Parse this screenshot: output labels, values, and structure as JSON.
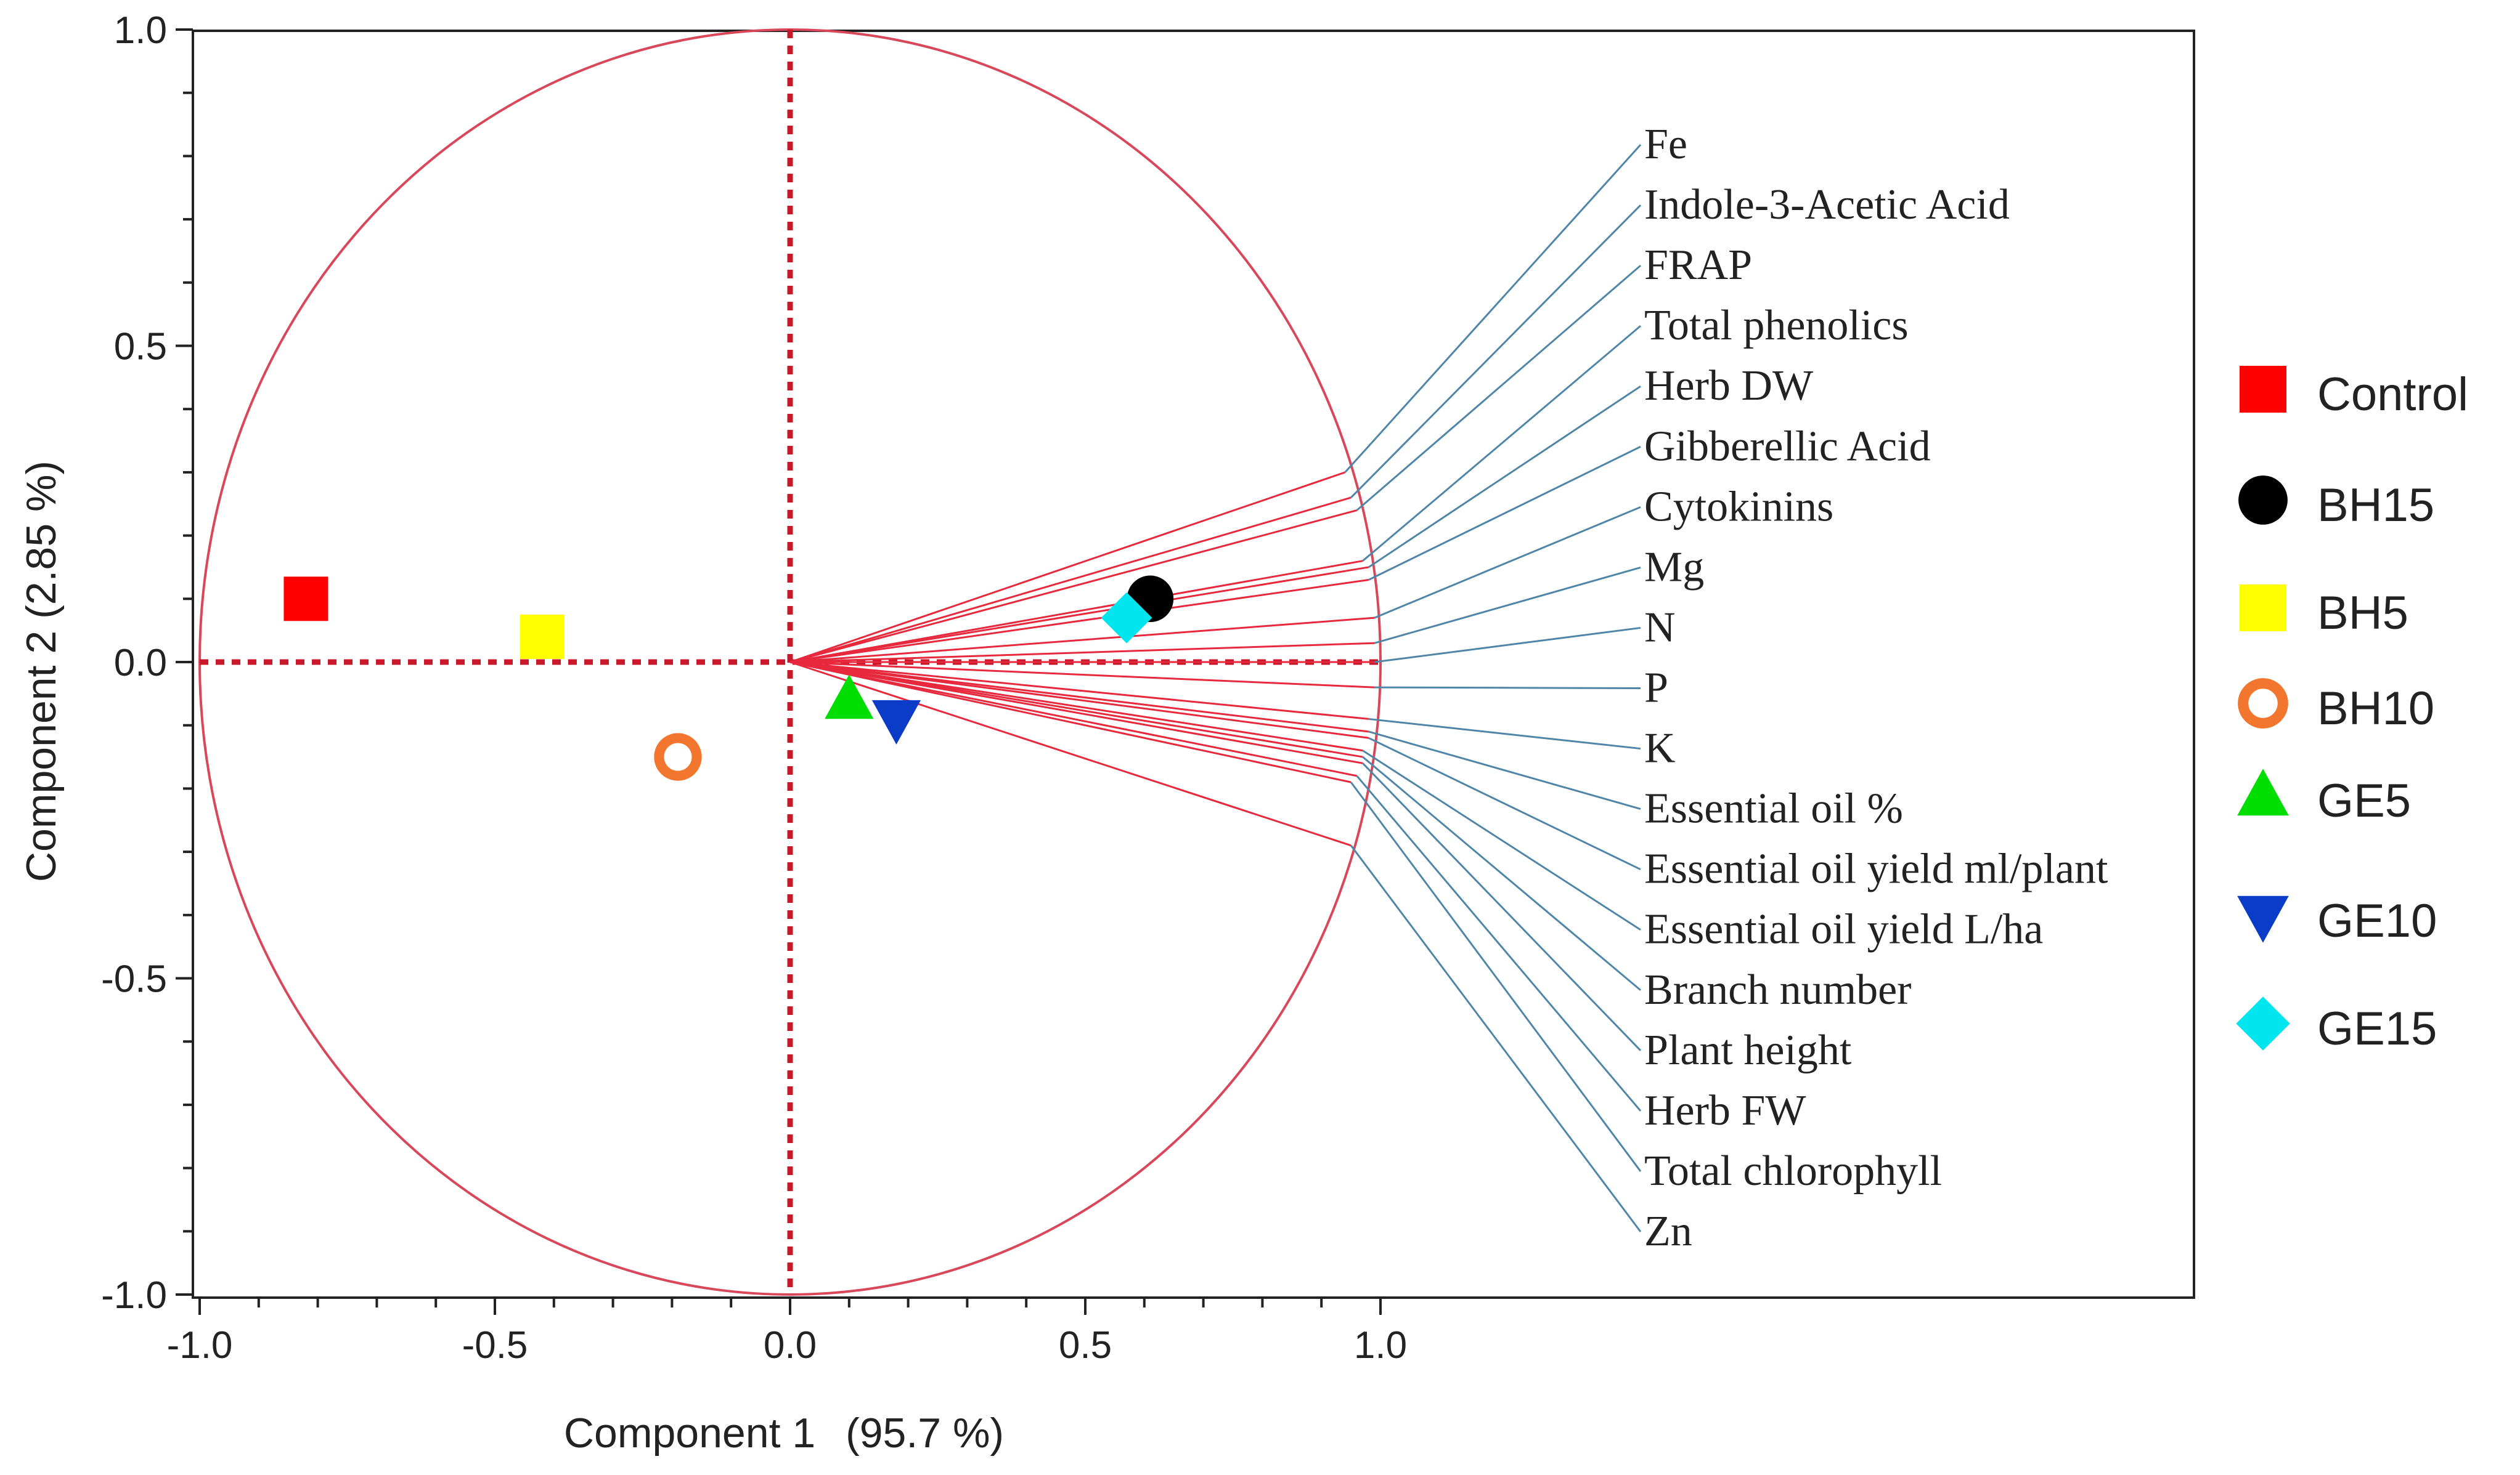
{
  "chart_data": {
    "type": "scatter",
    "subtype": "pca-biplot",
    "title": "",
    "xlabel": "Component 1",
    "xlabel_pct": "(95.7 %)",
    "ylabel": "Component 2 (2.85 %)",
    "xlim": [
      -1.0,
      1.0
    ],
    "ylim": [
      -1.0,
      1.0
    ],
    "x_ticks": [
      -1.0,
      -0.5,
      0.0,
      0.5,
      1.0
    ],
    "x_tick_labels": [
      "-1.0",
      "-0.5",
      "0.0",
      "0.5",
      "1.0"
    ],
    "y_ticks": [
      -1.0,
      -0.5,
      0.0,
      0.5,
      1.0
    ],
    "y_tick_labels": [
      "-1.0",
      "-0.5",
      "0.0",
      "0.5",
      "1.0"
    ],
    "grid": false,
    "unit_circle": true,
    "legend_position": "right",
    "series": [
      {
        "name": "Control",
        "marker": "square",
        "color": "#ff0000",
        "x": -0.82,
        "y": 0.1
      },
      {
        "name": "BH15",
        "marker": "circle",
        "color": "#000000",
        "x": 0.61,
        "y": 0.1
      },
      {
        "name": "BH5",
        "marker": "square",
        "color": "#ffff00",
        "x": -0.42,
        "y": 0.04
      },
      {
        "name": "BH10",
        "marker": "ring",
        "color": "#f2762e",
        "x": -0.19,
        "y": -0.15
      },
      {
        "name": "GE5",
        "marker": "triangle-up",
        "color": "#00dd00",
        "x": 0.1,
        "y": -0.06
      },
      {
        "name": "GE10",
        "marker": "triangle-down",
        "color": "#0a3cc8",
        "x": 0.18,
        "y": -0.09
      },
      {
        "name": "GE15",
        "marker": "diamond",
        "color": "#00e5ee",
        "x": 0.57,
        "y": 0.07
      }
    ],
    "loadings": [
      {
        "name": "Fe",
        "x": 0.94,
        "y": 0.3
      },
      {
        "name": "Indole-3-Acetic Acid",
        "x": 0.95,
        "y": 0.26
      },
      {
        "name": "FRAP",
        "x": 0.96,
        "y": 0.24
      },
      {
        "name": "Total phenolics",
        "x": 0.97,
        "y": 0.16
      },
      {
        "name": "Herb DW",
        "x": 0.98,
        "y": 0.15
      },
      {
        "name": "Gibberellic Acid",
        "x": 0.98,
        "y": 0.13
      },
      {
        "name": "Cytokinins",
        "x": 0.99,
        "y": 0.07
      },
      {
        "name": "Mg",
        "x": 0.99,
        "y": 0.03
      },
      {
        "name": "N",
        "x": 0.99,
        "y": 0.0
      },
      {
        "name": "P",
        "x": 0.99,
        "y": -0.04
      },
      {
        "name": "K",
        "x": 0.98,
        "y": -0.09
      },
      {
        "name": "Essential oil %",
        "x": 0.98,
        "y": -0.11
      },
      {
        "name": "Essential oil yield ml/plant",
        "x": 0.98,
        "y": -0.12
      },
      {
        "name": "Essential oil yield L/ha",
        "x": 0.97,
        "y": -0.14
      },
      {
        "name": "Branch number",
        "x": 0.97,
        "y": -0.15
      },
      {
        "name": "Plant height",
        "x": 0.97,
        "y": -0.16
      },
      {
        "name": "Herb FW",
        "x": 0.96,
        "y": -0.18
      },
      {
        "name": "Total chlorophyll",
        "x": 0.95,
        "y": -0.19
      },
      {
        "name": "Zn",
        "x": 0.95,
        "y": -0.29
      }
    ],
    "colors": {
      "circle": "#d9475a",
      "loading_line": "#e8283c",
      "connector": "#4f86a8",
      "axis_dash": "#c8192b",
      "frame": "#222222"
    }
  }
}
